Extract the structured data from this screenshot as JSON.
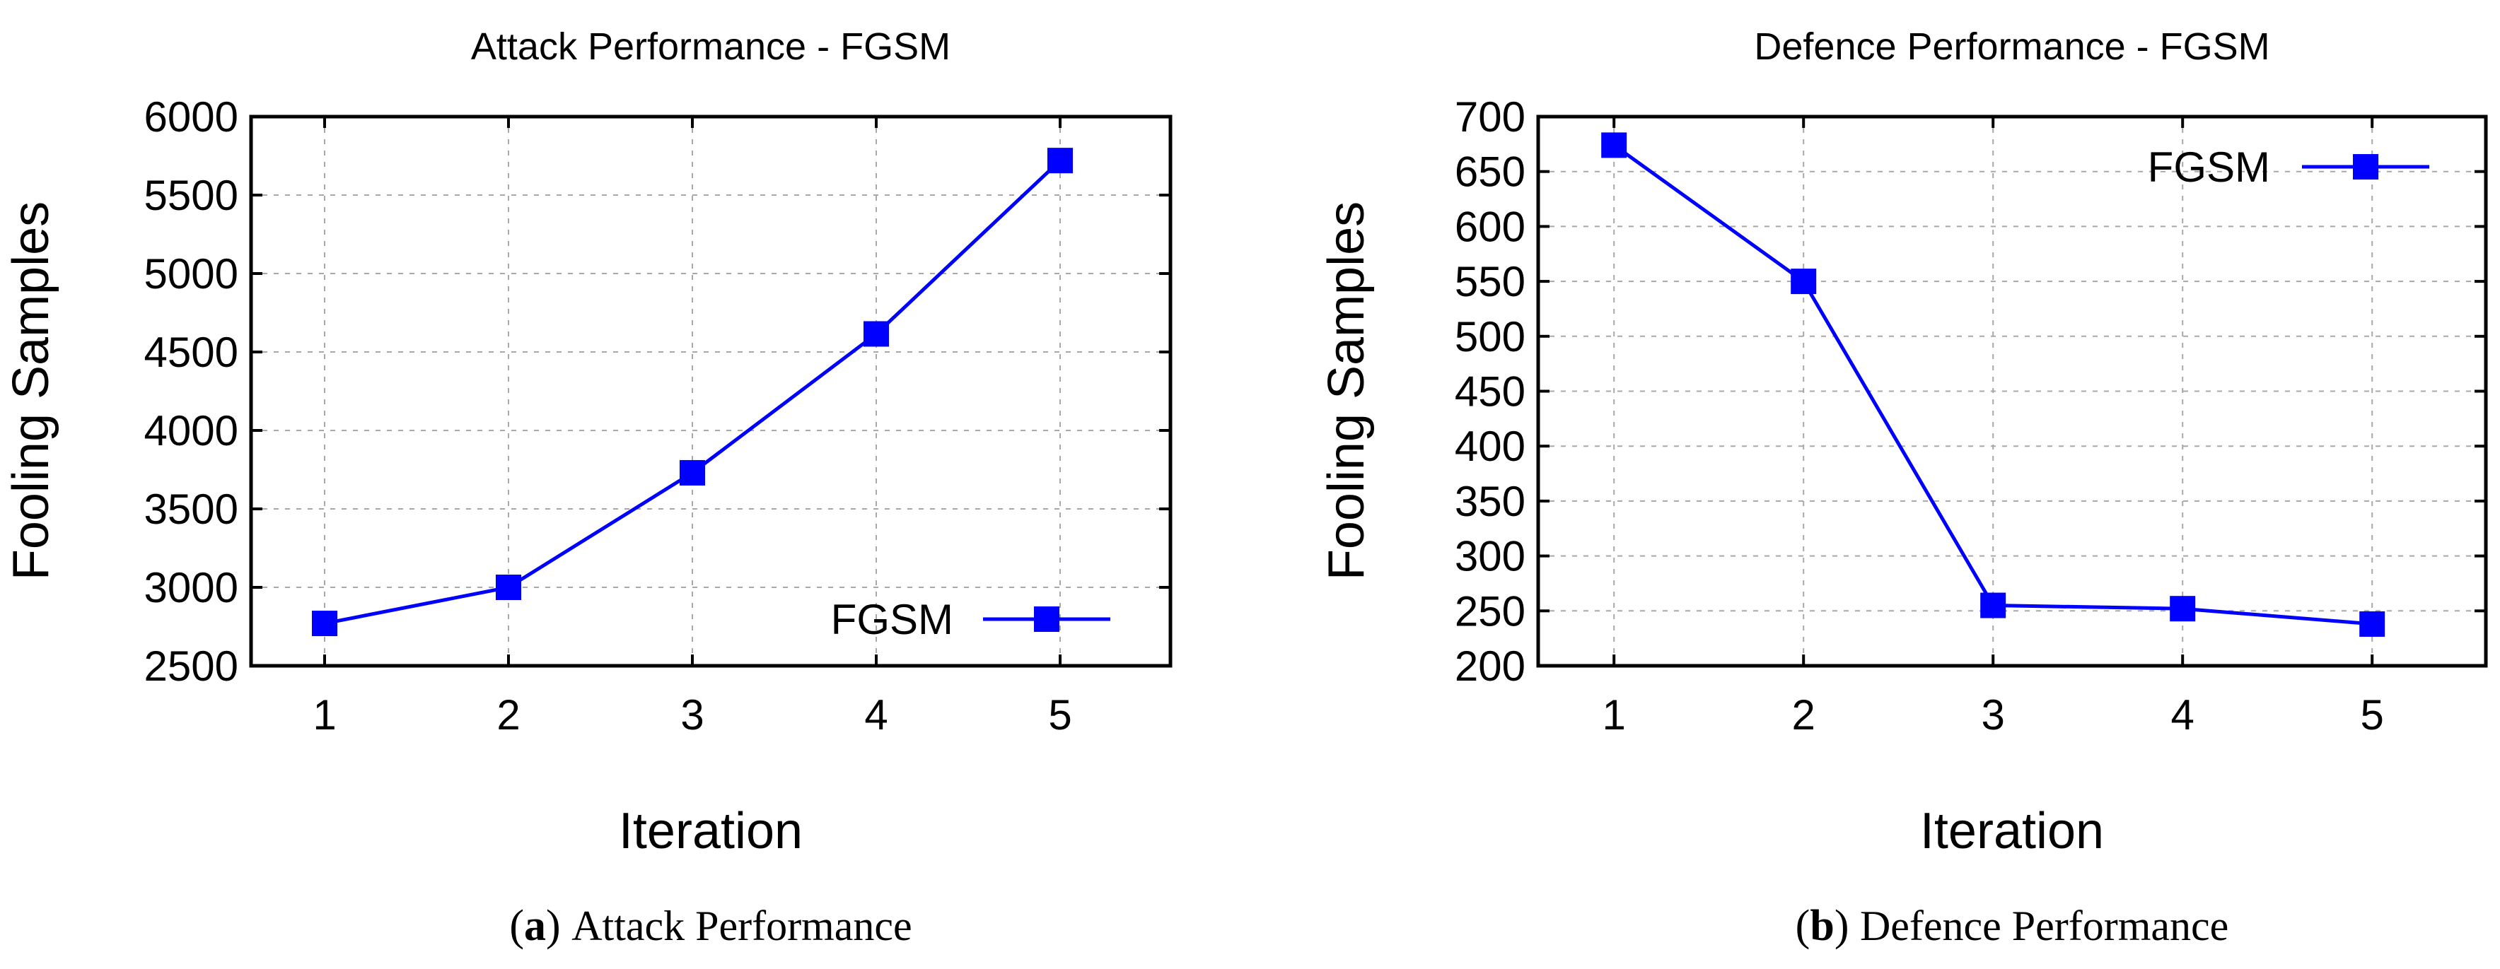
{
  "chart_data": [
    {
      "type": "line",
      "title": "Attack Performance - FGSM",
      "xlabel": "Iteration",
      "ylabel": "Fooling Samples",
      "x": [
        1,
        2,
        3,
        4,
        5
      ],
      "xlim": [
        0.6,
        5.6
      ],
      "ylim": [
        2500,
        6000
      ],
      "yticks": [
        2500,
        3000,
        3500,
        4000,
        4500,
        5000,
        5500,
        6000
      ],
      "grid": true,
      "legend_position": "bottom-right",
      "series": [
        {
          "name": "FGSM",
          "color": "#0000ff",
          "marker": "square",
          "values": [
            2770,
            3000,
            3730,
            4615,
            5720
          ]
        }
      ],
      "caption": {
        "letter": "a",
        "text": "Attack Performance"
      }
    },
    {
      "type": "line",
      "title": "Defence Performance - FGSM",
      "xlabel": "Iteration",
      "ylabel": "Fooling Samples",
      "x": [
        1,
        2,
        3,
        4,
        5
      ],
      "xlim": [
        0.6,
        5.6
      ],
      "ylim": [
        200,
        700
      ],
      "yticks": [
        200,
        250,
        300,
        350,
        400,
        450,
        500,
        550,
        600,
        650,
        700
      ],
      "grid": true,
      "legend_position": "top-right",
      "series": [
        {
          "name": "FGSM",
          "color": "#0000ff",
          "marker": "square",
          "values": [
            674,
            550,
            255,
            252,
            238
          ]
        }
      ],
      "caption": {
        "letter": "b",
        "text": "Defence Performance"
      }
    }
  ]
}
